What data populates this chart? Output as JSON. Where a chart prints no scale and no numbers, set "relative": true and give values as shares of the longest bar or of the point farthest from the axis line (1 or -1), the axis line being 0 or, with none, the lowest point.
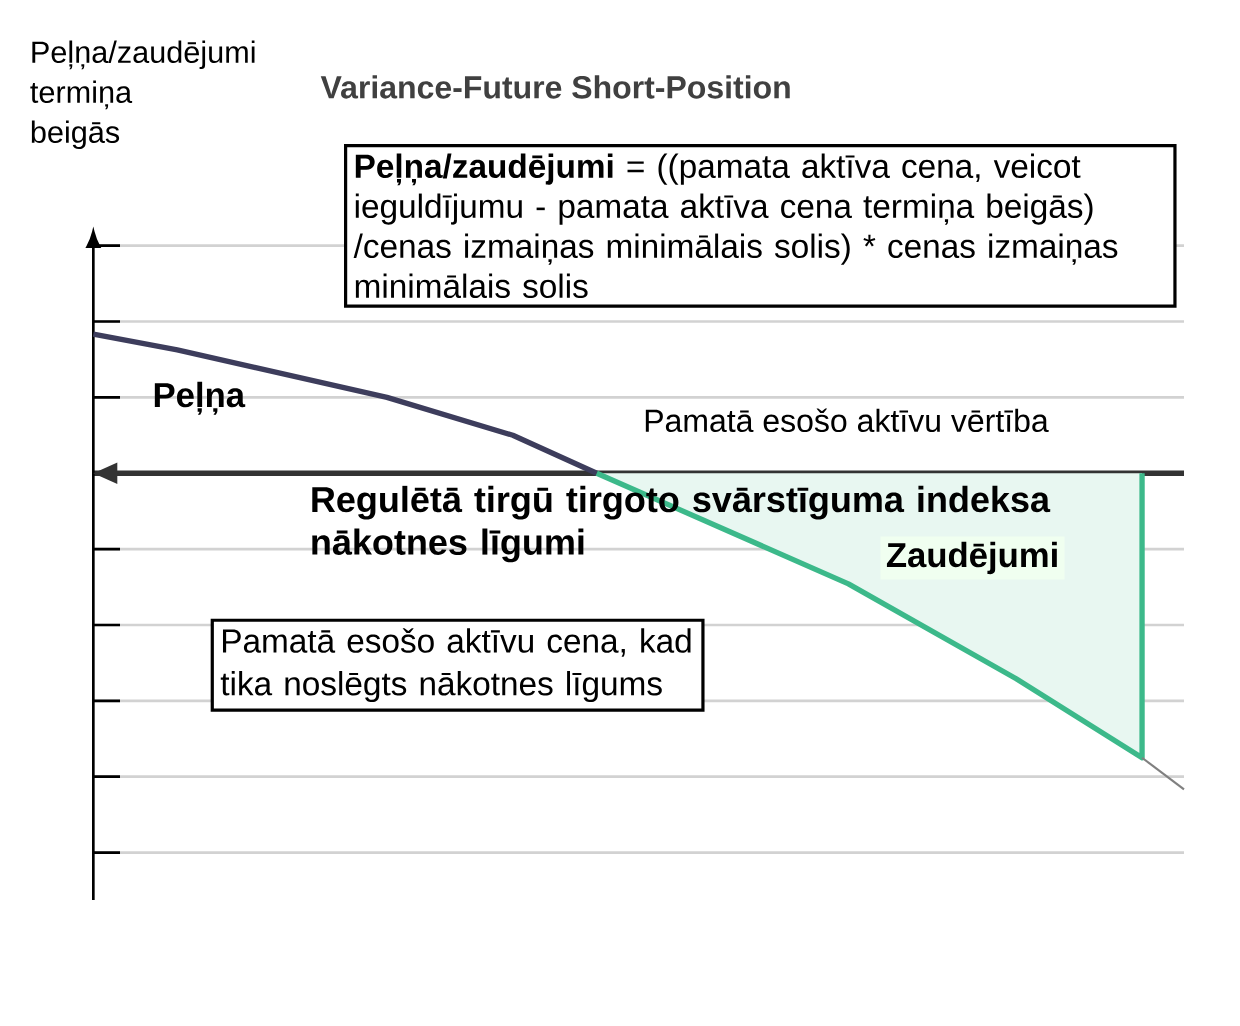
{
  "chart_data": {
    "type": "line",
    "relative": true,
    "grid": "y",
    "title": "Variance-Future Short-Position",
    "xlabel": "Pamatā esošo aktīvu vērtība",
    "categories": [
      null,
      null,
      null,
      null,
      null,
      null,
      null,
      null,
      null,
      null,
      null,
      null,
      null,
      null,
      null,
      null,
      null,
      null,
      null,
      null,
      null,
      null,
      null,
      null,
      null,
      null,
      null
    ],
    "series": [
      {
        "type": "line",
        "color": "#3d3d5c",
        "values": [
          0.44,
          null,
          0.39,
          null,
          null,
          0.3,
          null,
          0.24,
          null,
          null,
          0.12,
          null,
          0,
          null,
          null,
          null,
          null,
          null,
          null,
          null,
          null,
          null,
          null,
          null,
          null,
          null,
          null
        ]
      },
      {
        "type": "area",
        "color": "#3cb98a",
        "values": [
          null,
          null,
          null,
          null,
          null,
          null,
          null,
          null,
          null,
          null,
          null,
          null,
          0,
          null,
          null,
          null,
          null,
          null,
          -0.35,
          null,
          null,
          null,
          -0.65,
          null,
          null,
          -0.9,
          null
        ]
      },
      {
        "type": "line",
        "color": "#808080",
        "values": [
          null,
          null,
          null,
          null,
          null,
          null,
          null,
          null,
          null,
          null,
          null,
          null,
          null,
          null,
          null,
          null,
          null,
          null,
          null,
          null,
          null,
          null,
          null,
          null,
          null,
          -0.9,
          -1
        ]
      }
    ],
    "annotations": [
      "Peļņa/zaudējumi termiņa beigās",
      "**Peļņa/zaudējumi** = ((pamata aktīva cena, veicot ieguldījumu - pamata aktīva cena termiņa beigās) /cenas izmaiņas minimālais solis) * cenas izmaiņas minimālais solis",
      "Peļņa",
      "Regulētā tirgū tirgoto svārstīguma indeksa nākotnes līgumi",
      "Zaudējumi",
      "Pamatā esošo aktīvu cena, kad tika noslēgts nākotnes līgums"
    ]
  }
}
